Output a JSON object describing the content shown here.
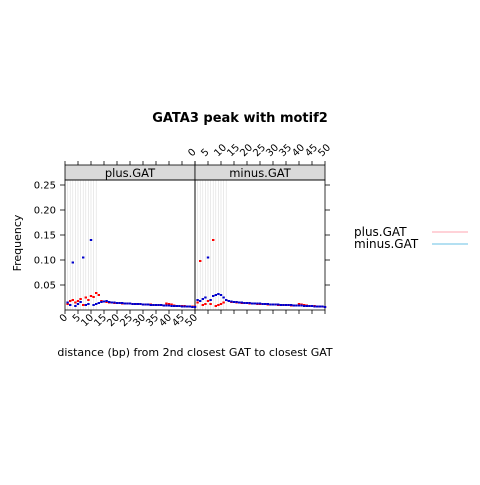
{
  "chart_data": {
    "type": "scatter",
    "title": "GATA3 peak with motif2",
    "xlabel": "distance (bp) from 2nd closest GAT to closest GAT",
    "ylabel": "Frequency",
    "xlim": [
      0,
      50
    ],
    "ylim": [
      0,
      0.3
    ],
    "x_ticks": [
      "0",
      "5",
      "10",
      "15",
      "20",
      "25",
      "30",
      "35",
      "40",
      "45",
      "50"
    ],
    "y_ticks": [
      "0.05",
      "0.10",
      "0.15",
      "0.20",
      "0.25"
    ],
    "panels": [
      "plus.GAT",
      "minus.GAT"
    ],
    "legend": {
      "position": "right",
      "entries": [
        {
          "label": "plus.GAT",
          "color": "#ffb6c1"
        },
        {
          "label": "minus.GAT",
          "color": "#87ceeb"
        }
      ]
    },
    "marker_colors": {
      "plus": "#ff0000",
      "minus": "#0000cc"
    },
    "grid": "vertical lines at x = 1 to 12",
    "series": [
      {
        "panel": "plus.GAT",
        "strand": "plus",
        "x": [
          1,
          2,
          3,
          4,
          5,
          6,
          7,
          8,
          9,
          10,
          11,
          12,
          13,
          14,
          15,
          16,
          17,
          18,
          19,
          20,
          21,
          22,
          23,
          24,
          25,
          26,
          27,
          28,
          29,
          30,
          31,
          32,
          33,
          34,
          35,
          36,
          37,
          38,
          39,
          40,
          41,
          42,
          43,
          44,
          45,
          46,
          47,
          48,
          49,
          50
        ],
        "values": [
          0.012,
          0.018,
          0.02,
          0.015,
          0.018,
          0.022,
          0.01,
          0.025,
          0.02,
          0.028,
          0.026,
          0.034,
          0.03,
          0.018,
          0.017,
          0.016,
          0.015,
          0.015,
          0.014,
          0.014,
          0.014,
          0.013,
          0.013,
          0.013,
          0.013,
          0.012,
          0.012,
          0.012,
          0.012,
          0.011,
          0.011,
          0.011,
          0.011,
          0.01,
          0.01,
          0.01,
          0.01,
          0.009,
          0.013,
          0.012,
          0.011,
          0.009,
          0.008,
          0.008,
          0.008,
          0.008,
          0.007,
          0.007,
          0.007,
          0.007
        ]
      },
      {
        "panel": "plus.GAT",
        "strand": "minus",
        "x": [
          1,
          2,
          3,
          4,
          5,
          6,
          7,
          8,
          9,
          10,
          11,
          12,
          13,
          14,
          15,
          16,
          17,
          18,
          19,
          20,
          21,
          22,
          23,
          24,
          25,
          26,
          27,
          28,
          29,
          30,
          31,
          32,
          33,
          34,
          35,
          36,
          37,
          38,
          39,
          40,
          41,
          42,
          43,
          44,
          45,
          46,
          47,
          48,
          49,
          50
        ],
        "values": [
          0.015,
          0.01,
          0.095,
          0.008,
          0.012,
          0.016,
          0.105,
          0.01,
          0.012,
          0.14,
          0.01,
          0.012,
          0.014,
          0.016,
          0.017,
          0.018,
          0.016,
          0.015,
          0.015,
          0.014,
          0.014,
          0.014,
          0.013,
          0.013,
          0.013,
          0.012,
          0.012,
          0.012,
          0.012,
          0.011,
          0.011,
          0.011,
          0.01,
          0.01,
          0.01,
          0.01,
          0.01,
          0.009,
          0.009,
          0.009,
          0.008,
          0.008,
          0.008,
          0.008,
          0.007,
          0.007,
          0.007,
          0.007,
          0.006,
          0.006
        ]
      },
      {
        "panel": "minus.GAT",
        "strand": "plus",
        "x": [
          1,
          2,
          3,
          4,
          5,
          6,
          7,
          8,
          9,
          10,
          11,
          12,
          13,
          14,
          15,
          16,
          17,
          18,
          19,
          20,
          21,
          22,
          23,
          24,
          25,
          26,
          27,
          28,
          29,
          30,
          31,
          32,
          33,
          34,
          35,
          36,
          37,
          38,
          39,
          40,
          41,
          42,
          43,
          44,
          45,
          46,
          47,
          48,
          49,
          50
        ],
        "values": [
          0.015,
          0.098,
          0.01,
          0.012,
          0.018,
          0.012,
          0.14,
          0.008,
          0.01,
          0.012,
          0.015,
          0.02,
          0.018,
          0.016,
          0.016,
          0.015,
          0.015,
          0.014,
          0.014,
          0.014,
          0.013,
          0.013,
          0.013,
          0.012,
          0.012,
          0.012,
          0.012,
          0.011,
          0.011,
          0.011,
          0.011,
          0.01,
          0.01,
          0.01,
          0.01,
          0.01,
          0.009,
          0.009,
          0.009,
          0.012,
          0.011,
          0.01,
          0.009,
          0.008,
          0.008,
          0.008,
          0.007,
          0.007,
          0.007,
          0.006
        ]
      },
      {
        "panel": "minus.GAT",
        "strand": "minus",
        "x": [
          1,
          2,
          3,
          4,
          5,
          6,
          7,
          8,
          9,
          10,
          11,
          12,
          13,
          14,
          15,
          16,
          17,
          18,
          19,
          20,
          21,
          22,
          23,
          24,
          25,
          26,
          27,
          28,
          29,
          30,
          31,
          32,
          33,
          34,
          35,
          36,
          37,
          38,
          39,
          40,
          41,
          42,
          43,
          44,
          45,
          46,
          47,
          48,
          49,
          50
        ],
        "values": [
          0.02,
          0.018,
          0.022,
          0.025,
          0.105,
          0.02,
          0.028,
          0.03,
          0.032,
          0.03,
          0.025,
          0.02,
          0.018,
          0.017,
          0.016,
          0.016,
          0.015,
          0.015,
          0.014,
          0.014,
          0.014,
          0.013,
          0.013,
          0.013,
          0.013,
          0.012,
          0.012,
          0.012,
          0.011,
          0.011,
          0.011,
          0.011,
          0.01,
          0.01,
          0.01,
          0.01,
          0.01,
          0.009,
          0.009,
          0.009,
          0.009,
          0.008,
          0.008,
          0.008,
          0.008,
          0.007,
          0.007,
          0.007,
          0.007,
          0.006
        ]
      }
    ]
  }
}
